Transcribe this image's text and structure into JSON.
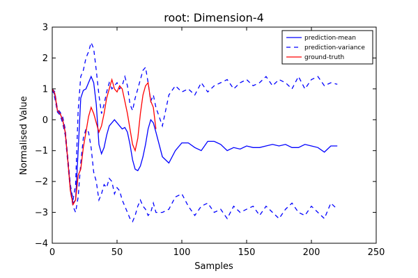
{
  "chart_data": {
    "type": "line",
    "title": "root: Dimension-4",
    "xlabel": "Samples",
    "ylabel": "Normalised Value",
    "xlim": [
      0,
      250
    ],
    "ylim": [
      -4,
      3
    ],
    "xticks": [
      "0",
      "50",
      "100",
      "150",
      "200",
      "250"
    ],
    "yticks": [
      "3",
      "2",
      "1",
      "0",
      "−1",
      "−2",
      "−3",
      "−4"
    ],
    "grid": false,
    "legend_position": "top-right",
    "series": [
      {
        "name": "prediction-mean",
        "color": "#0000ff",
        "style": "solid",
        "x": [
          0,
          2,
          4,
          6,
          8,
          10,
          12,
          14,
          16,
          18,
          20,
          22,
          24,
          26,
          28,
          30,
          32,
          34,
          36,
          38,
          40,
          42,
          44,
          46,
          48,
          50,
          52,
          54,
          56,
          58,
          60,
          62,
          64,
          66,
          68,
          70,
          72,
          74,
          76,
          78,
          80,
          85,
          90,
          95,
          100,
          105,
          110,
          115,
          120,
          125,
          130,
          135,
          140,
          145,
          150,
          155,
          160,
          165,
          170,
          175,
          180,
          185,
          190,
          195,
          200,
          205,
          210,
          215,
          220
        ],
        "y": [
          1.0,
          0.8,
          0.3,
          0.2,
          0.0,
          -0.4,
          -1.3,
          -2.2,
          -2.7,
          -2.6,
          -1.0,
          0.7,
          0.95,
          1.0,
          1.2,
          1.4,
          1.2,
          0.5,
          -0.8,
          -1.1,
          -0.9,
          -0.5,
          -0.2,
          -0.1,
          0.0,
          -0.1,
          -0.2,
          -0.3,
          -0.25,
          -0.4,
          -0.8,
          -1.3,
          -1.6,
          -1.65,
          -1.5,
          -1.2,
          -0.8,
          -0.3,
          0.0,
          -0.1,
          -0.4,
          -1.2,
          -1.4,
          -1.0,
          -0.75,
          -0.75,
          -0.9,
          -1.0,
          -0.7,
          -0.7,
          -0.8,
          -1.0,
          -0.9,
          -0.95,
          -0.85,
          -0.9,
          -0.9,
          -0.85,
          -0.8,
          -0.85,
          -0.8,
          -0.9,
          -0.9,
          -0.8,
          -0.85,
          -0.9,
          -1.05,
          -0.85,
          -0.85
        ]
      },
      {
        "name": "prediction-variance",
        "color": "#0000ff",
        "style": "dashed",
        "x": [
          0,
          2,
          4,
          6,
          8,
          10,
          12,
          14,
          16,
          18,
          20,
          22,
          24,
          26,
          28,
          30,
          32,
          34,
          36,
          38,
          40,
          42,
          44,
          46,
          48,
          50,
          52,
          54,
          56,
          58,
          60,
          62,
          64,
          66,
          68,
          70,
          72,
          74,
          76,
          78,
          80,
          85,
          90,
          95,
          100,
          105,
          110,
          115,
          120,
          125,
          130,
          135,
          140,
          145,
          150,
          155,
          160,
          165,
          170,
          175,
          180,
          185,
          190,
          195,
          200,
          205,
          210,
          215,
          220
        ],
        "y": [
          1.0,
          0.9,
          0.35,
          0.25,
          0.1,
          -0.3,
          -1.2,
          -2.1,
          -2.6,
          -2.1,
          0.3,
          1.4,
          1.6,
          2.0,
          2.2,
          2.5,
          2.3,
          1.6,
          0.8,
          0.2,
          0.5,
          0.9,
          1.2,
          1.0,
          1.1,
          1.2,
          1.0,
          1.1,
          1.4,
          1.1,
          0.5,
          0.3,
          0.7,
          1.0,
          1.3,
          1.6,
          1.7,
          1.2,
          0.6,
          0.8,
          0.4,
          -0.2,
          0.8,
          1.1,
          0.9,
          1.0,
          0.8,
          1.2,
          0.9,
          1.1,
          1.2,
          1.3,
          1.0,
          1.2,
          1.3,
          1.1,
          1.2,
          1.4,
          1.1,
          1.3,
          1.2,
          1.0,
          1.4,
          1.0,
          1.3,
          1.4,
          1.1,
          1.2,
          1.15
        ]
      },
      {
        "name": "prediction-variance-lower",
        "color": "#0000ff",
        "style": "dashed",
        "x": [
          0,
          2,
          4,
          6,
          8,
          10,
          12,
          14,
          16,
          18,
          20,
          22,
          24,
          26,
          28,
          30,
          32,
          34,
          36,
          38,
          40,
          42,
          44,
          46,
          48,
          50,
          52,
          54,
          56,
          58,
          60,
          62,
          64,
          66,
          68,
          70,
          72,
          74,
          76,
          78,
          80,
          85,
          90,
          95,
          100,
          105,
          110,
          115,
          120,
          125,
          130,
          135,
          140,
          145,
          150,
          155,
          160,
          165,
          170,
          175,
          180,
          185,
          190,
          195,
          200,
          205,
          210,
          215,
          220
        ],
        "y": [
          1.0,
          0.7,
          0.25,
          0.15,
          -0.1,
          -0.5,
          -1.4,
          -2.3,
          -2.8,
          -3.0,
          -2.5,
          -1.4,
          -0.6,
          -0.3,
          -0.4,
          -0.9,
          -1.7,
          -2.0,
          -2.6,
          -2.4,
          -2.1,
          -2.2,
          -1.9,
          -2.0,
          -2.4,
          -2.2,
          -2.3,
          -2.6,
          -2.8,
          -3.0,
          -3.2,
          -3.3,
          -3.1,
          -2.8,
          -2.6,
          -2.8,
          -2.9,
          -3.1,
          -3.0,
          -2.7,
          -3.0,
          -3.0,
          -2.9,
          -2.5,
          -2.4,
          -2.8,
          -3.1,
          -2.8,
          -2.7,
          -3.0,
          -2.9,
          -3.2,
          -2.8,
          -3.0,
          -2.9,
          -2.8,
          -3.1,
          -2.8,
          -3.0,
          -3.2,
          -2.9,
          -2.7,
          -3.0,
          -3.1,
          -2.8,
          -3.0,
          -3.2,
          -2.7,
          -2.9
        ]
      },
      {
        "name": "ground-truth",
        "color": "#ff0000",
        "style": "solid",
        "x": [
          0,
          2,
          4,
          6,
          8,
          10,
          12,
          14,
          16,
          18,
          20,
          22,
          24,
          26,
          28,
          30,
          32,
          34,
          36,
          38,
          40,
          42,
          44,
          46,
          48,
          50,
          52,
          54,
          56,
          58,
          60,
          62,
          64,
          66,
          68,
          70,
          72,
          74,
          76,
          78,
          80
        ],
        "y": [
          1.0,
          0.85,
          0.3,
          0.2,
          0.0,
          -0.4,
          -1.3,
          -2.3,
          -2.75,
          -2.6,
          -1.8,
          -1.6,
          -0.9,
          -0.4,
          0.1,
          0.4,
          0.2,
          -0.1,
          -0.4,
          -0.2,
          0.2,
          0.7,
          1.0,
          1.3,
          1.0,
          0.9,
          1.1,
          1.0,
          0.6,
          0.2,
          -0.3,
          -0.8,
          -1.0,
          -0.6,
          0.2,
          0.8,
          1.1,
          1.2,
          0.6,
          0.4,
          -0.3
        ]
      }
    ],
    "legend": [
      {
        "label": "prediction-mean",
        "style": "solid",
        "color": "#0000ff"
      },
      {
        "label": "prediction-variance",
        "style": "dashed",
        "color": "#0000ff"
      },
      {
        "label": "ground-truth",
        "style": "solid",
        "color": "#ff0000"
      }
    ]
  }
}
